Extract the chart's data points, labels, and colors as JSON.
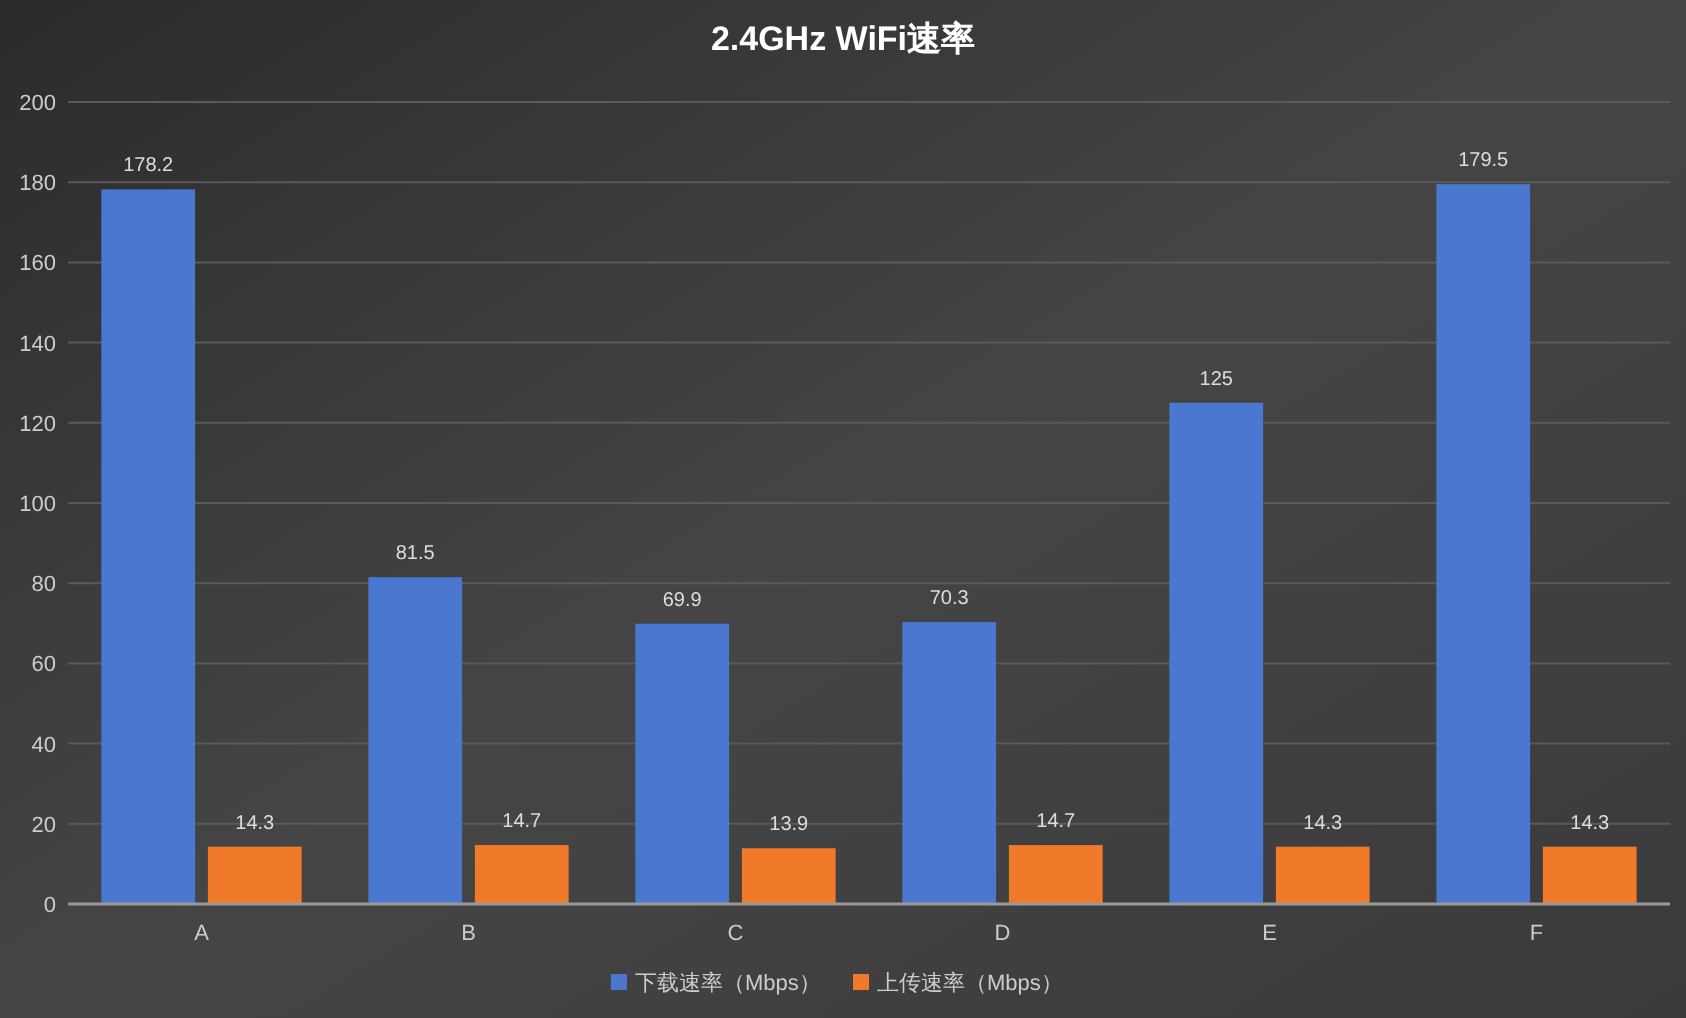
{
  "chart_data": {
    "type": "bar",
    "title": "2.4GHz WiFi速率",
    "categories": [
      "A",
      "B",
      "C",
      "D",
      "E",
      "F"
    ],
    "series": [
      {
        "name": "下载速率（Mbps）",
        "color": "#4a78d0",
        "values": [
          178.2,
          81.5,
          69.9,
          70.3,
          125,
          179.5
        ]
      },
      {
        "name": "上传速率（Mbps）",
        "color": "#f07a2a",
        "values": [
          14.3,
          14.7,
          13.9,
          14.7,
          14.3,
          14.3
        ]
      }
    ],
    "ylim": [
      0,
      200
    ],
    "yticks": [
      0,
      20,
      40,
      60,
      80,
      100,
      120,
      140,
      160,
      180,
      200
    ],
    "grid": "y",
    "legend": "bottom",
    "data_labels": true
  }
}
